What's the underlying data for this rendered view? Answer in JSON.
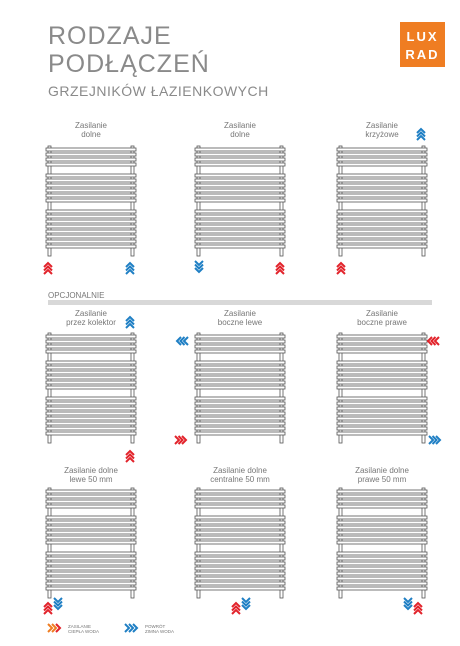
{
  "header": {
    "title": [
      "RODZAJE",
      "PODŁĄCZEŃ"
    ],
    "subtitle": "GRZEJNIKÓW ŁAZIENKOWYCH",
    "logo": [
      "LUX",
      "RAD"
    ]
  },
  "section": "OPCJONALNIE",
  "panels": [
    {
      "label": [
        "Zasilanie",
        "dolne"
      ]
    },
    {
      "label": [
        "Zasilanie",
        "dolne"
      ]
    },
    {
      "label": [
        "Zasilanie",
        "krzyżowe"
      ]
    },
    {
      "label": [
        "Zasilanie",
        "przez kolektor"
      ]
    },
    {
      "label": [
        "Zasilanie",
        "boczne lewe"
      ]
    },
    {
      "label": [
        "Zasilanie",
        "boczne prawe"
      ]
    },
    {
      "label": [
        "Zasilanie dolne",
        "lewe 50 mm"
      ]
    },
    {
      "label": [
        "Zasilanie dolne",
        "centralne 50 mm"
      ]
    },
    {
      "label": [
        "Zasilanie dolne",
        "prawe 50 mm"
      ]
    }
  ],
  "legend": [
    {
      "label": [
        "ZASILANIE",
        "CIEPŁA WODA"
      ]
    },
    {
      "label": [
        "POWRÓT",
        "ZIMNA WODA"
      ]
    }
  ]
}
